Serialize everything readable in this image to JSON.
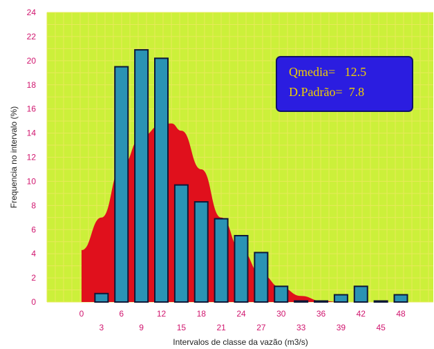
{
  "chart_data": {
    "type": "bar",
    "xlabel": "Intervalos de classe da vazão (m3/s)",
    "ylabel": "Frequencia no intervalo (%)",
    "ylim": [
      0,
      24
    ],
    "yticks": [
      0,
      2,
      4,
      6,
      8,
      10,
      12,
      14,
      16,
      18,
      20,
      22,
      24
    ],
    "x_ticks_upper": [
      "0",
      "6",
      "12",
      "18",
      "24",
      "30",
      "36",
      "42",
      "48"
    ],
    "x_ticks_lower": [
      "3",
      "9",
      "15",
      "21",
      "27",
      "33",
      "39",
      "45"
    ],
    "grid": true,
    "bars": {
      "x": [
        3,
        6,
        9,
        12,
        15,
        18,
        21,
        24,
        27,
        30,
        33,
        36,
        39,
        42,
        45,
        48
      ],
      "values": [
        0.7,
        19.5,
        20.9,
        20.2,
        9.7,
        8.3,
        6.9,
        5.5,
        4.1,
        1.3,
        0.0,
        0.0,
        0.6,
        1.3,
        0.0,
        0.6
      ]
    },
    "curve": {
      "x": [
        0,
        3,
        6,
        9,
        12,
        13.5,
        15,
        18,
        21,
        24,
        27,
        30,
        33,
        36,
        39
      ],
      "values": [
        4.3,
        7.0,
        11.2,
        13.7,
        14.7,
        14.8,
        14.2,
        11.0,
        7.0,
        4.3,
        2.3,
        1.2,
        0.5,
        0.1,
        0.0
      ]
    },
    "stats_box": {
      "line1": "Qmedia=   12.5",
      "line2": "D.Padrão=  7.8"
    },
    "colors": {
      "plot_bg": "#ccf03a",
      "grid": "#e7ea5a",
      "bar_fill": "#2a93b4",
      "bar_edge": "#0d1838",
      "curve_fill": "#e0101c",
      "tick_text": "#d0156e",
      "stats_bg": "#2b1de0",
      "stats_text": "#f0d000"
    }
  }
}
